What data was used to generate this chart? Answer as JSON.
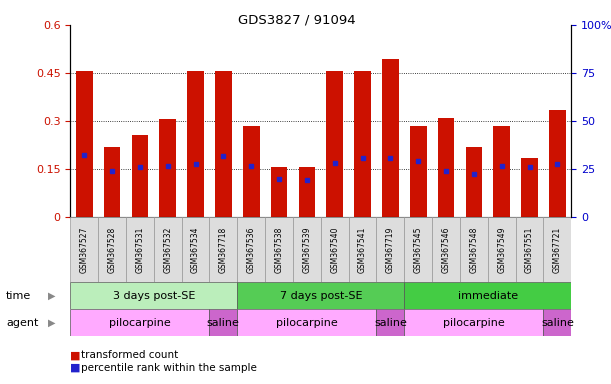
{
  "title": "GDS3827 / 91094",
  "samples": [
    "GSM367527",
    "GSM367528",
    "GSM367531",
    "GSM367532",
    "GSM367534",
    "GSM367718",
    "GSM367536",
    "GSM367538",
    "GSM367539",
    "GSM367540",
    "GSM367541",
    "GSM367719",
    "GSM367545",
    "GSM367546",
    "GSM367548",
    "GSM367549",
    "GSM367551",
    "GSM367721"
  ],
  "transformed_count": [
    0.455,
    0.22,
    0.255,
    0.305,
    0.455,
    0.455,
    0.285,
    0.155,
    0.155,
    0.455,
    0.455,
    0.495,
    0.285,
    0.31,
    0.22,
    0.285,
    0.185,
    0.335
  ],
  "percentile_rank_left": [
    0.195,
    0.145,
    0.155,
    0.16,
    0.165,
    0.19,
    0.16,
    0.12,
    0.115,
    0.17,
    0.185,
    0.185,
    0.175,
    0.145,
    0.135,
    0.16,
    0.155,
    0.165
  ],
  "ylim_left": [
    0,
    0.6
  ],
  "ylim_right": [
    0,
    100
  ],
  "yticks_left": [
    0,
    0.15,
    0.3,
    0.45,
    0.6
  ],
  "yticks_right": [
    0,
    25,
    50,
    75,
    100
  ],
  "bar_color": "#cc1100",
  "dot_color": "#2222cc",
  "grid_color": "#000000",
  "time_groups": [
    {
      "label": "3 days post-SE",
      "start": 0,
      "end": 5,
      "color": "#bbeebb"
    },
    {
      "label": "7 days post-SE",
      "start": 6,
      "end": 11,
      "color": "#55cc55"
    },
    {
      "label": "immediate",
      "start": 12,
      "end": 17,
      "color": "#44cc44"
    }
  ],
  "agent_groups": [
    {
      "label": "pilocarpine",
      "start": 0,
      "end": 4,
      "color": "#ffaaff"
    },
    {
      "label": "saline",
      "start": 5,
      "end": 5,
      "color": "#cc66cc"
    },
    {
      "label": "pilocarpine",
      "start": 6,
      "end": 10,
      "color": "#ffaaff"
    },
    {
      "label": "saline",
      "start": 11,
      "end": 11,
      "color": "#cc66cc"
    },
    {
      "label": "pilocarpine",
      "start": 12,
      "end": 16,
      "color": "#ffaaff"
    },
    {
      "label": "saline",
      "start": 17,
      "end": 17,
      "color": "#cc66cc"
    }
  ],
  "legend_items": [
    {
      "label": "transformed count",
      "color": "#cc1100"
    },
    {
      "label": "percentile rank within the sample",
      "color": "#2222cc"
    }
  ]
}
